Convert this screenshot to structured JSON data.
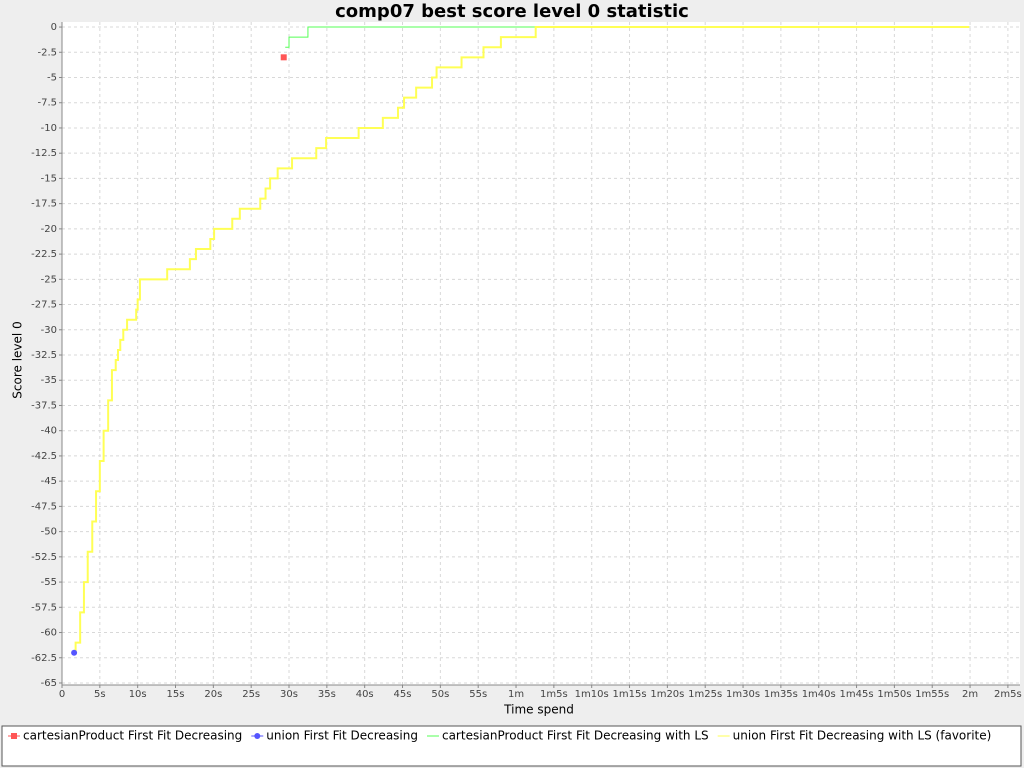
{
  "chart_data": {
    "type": "line",
    "step": true,
    "grid": true,
    "title": "comp07 best score level 0 statistic",
    "xlabel": "Time spend",
    "ylabel": "Score level 0",
    "xlim": [
      0,
      126.6
    ],
    "ylim": [
      -65.2,
      0.5
    ],
    "xticks": [
      0,
      {
        "value": 5,
        "label": "5s"
      },
      {
        "value": 10,
        "label": "10s"
      },
      {
        "value": 15,
        "label": "15s"
      },
      {
        "value": 20,
        "label": "20s"
      },
      {
        "value": 25,
        "label": "25s"
      },
      {
        "value": 30,
        "label": "30s"
      },
      {
        "value": 35,
        "label": "35s"
      },
      {
        "value": 40,
        "label": "40s"
      },
      {
        "value": 45,
        "label": "45s"
      },
      {
        "value": 50,
        "label": "50s"
      },
      {
        "value": 55,
        "label": "55s"
      },
      {
        "value": 60,
        "label": "1m"
      },
      {
        "value": 65,
        "label": "1m5s"
      },
      {
        "value": 70,
        "label": "1m10s"
      },
      {
        "value": 75,
        "label": "1m15s"
      },
      {
        "value": 80,
        "label": "1m20s"
      },
      {
        "value": 85,
        "label": "1m25s"
      },
      {
        "value": 90,
        "label": "1m30s"
      },
      {
        "value": 95,
        "label": "1m35s"
      },
      {
        "value": 100,
        "label": "1m40s"
      },
      {
        "value": 105,
        "label": "1m45s"
      },
      {
        "value": 110,
        "label": "1m50s"
      },
      {
        "value": 115,
        "label": "1m55s"
      },
      {
        "value": 120,
        "label": "2m"
      },
      {
        "value": 125,
        "label": "2m5s"
      }
    ],
    "yticks": [
      0,
      -2.5,
      -5,
      -7.5,
      -10,
      -12.5,
      -15,
      -17.5,
      -20,
      -22.5,
      -25,
      -27.5,
      -30,
      -32.5,
      -35,
      -37.5,
      -40,
      -42.5,
      -45,
      -47.5,
      -50,
      -52.5,
      -55,
      -57.5,
      -60,
      -62.5,
      -65
    ],
    "series": [
      {
        "name": "cartesianProduct First Fit Decreasing",
        "color": "#ff5555",
        "marker": "square",
        "x": [
          29.3
        ],
        "values": [
          -3
        ]
      },
      {
        "name": "union First Fit Decreasing",
        "color": "#5555ff",
        "marker": "circle",
        "x": [
          1.6
        ],
        "values": [
          -62
        ]
      },
      {
        "name": "cartesianProduct First Fit Decreasing with LS",
        "color": "#55ff55",
        "marker": "none",
        "x": [
          29.5,
          30,
          32.5,
          119.9
        ],
        "values": [
          -2,
          -1,
          0,
          0
        ]
      },
      {
        "name": "union First Fit Decreasing with LS (favorite)",
        "color": "#ffff55",
        "marker": "none",
        "x": [
          1.6,
          1.8,
          2.4,
          2.9,
          3.4,
          4.0,
          4.5,
          5.0,
          5.5,
          6.1,
          6.6,
          7.1,
          7.4,
          7.7,
          8.1,
          8.6,
          9.8,
          10.0,
          10.3,
          13.9,
          16.9,
          17.7,
          19.6,
          20.1,
          22.5,
          23.5,
          26.2,
          26.9,
          27.5,
          28.5,
          30.4,
          33.6,
          34.9,
          39.2,
          42.4,
          44.4,
          45.2,
          46.8,
          48.9,
          49.5,
          52.8,
          55.7,
          58.0,
          62.6,
          119.9
        ],
        "values": [
          -62,
          -61,
          -58,
          -55,
          -52,
          -49,
          -46,
          -43,
          -40,
          -37,
          -34,
          -33,
          -32,
          -31,
          -30,
          -29,
          -28,
          -27,
          -25,
          -24,
          -23,
          -22,
          -21,
          -20,
          -19,
          -18,
          -17,
          -16,
          -15,
          -14,
          -13,
          -12,
          -11,
          -10,
          -9,
          -8,
          -7,
          -6,
          -5,
          -4,
          -3,
          -2,
          -1,
          0,
          0
        ]
      }
    ]
  }
}
